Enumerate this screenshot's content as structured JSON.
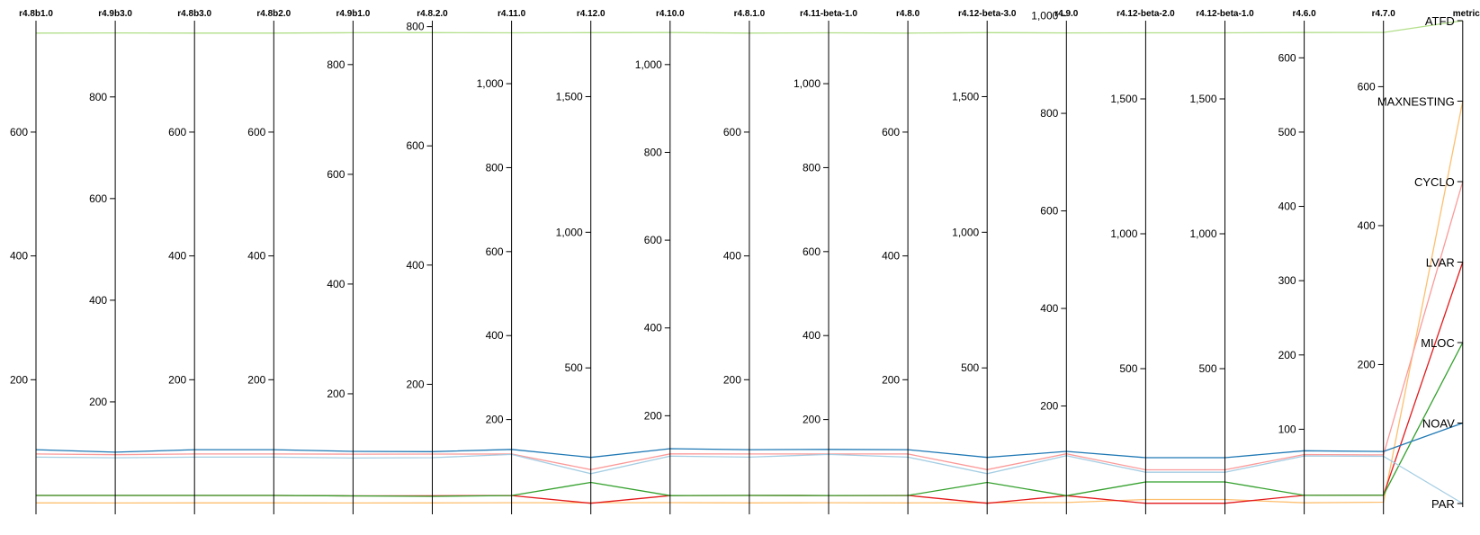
{
  "chart_data": {
    "type": "parallel-coordinates",
    "title": "",
    "category_axis": {
      "title": "metric",
      "categories": [
        "ATFD",
        "MAXNESTING",
        "CYCLO",
        "LVAR",
        "MLOC",
        "NOAV",
        "PAR"
      ]
    },
    "axes": [
      {
        "title": "r4.8b1.0",
        "domain": [
          0,
          780
        ],
        "ticks": [
          200,
          400,
          600
        ]
      },
      {
        "title": "r4.9b3.0",
        "domain": [
          0,
          950
        ],
        "ticks": [
          200,
          400,
          600,
          800
        ]
      },
      {
        "title": "r4.8b3.0",
        "domain": [
          0,
          780
        ],
        "ticks": [
          200,
          400,
          600
        ]
      },
      {
        "title": "r4.8b2.0",
        "domain": [
          0,
          780
        ],
        "ticks": [
          200,
          400,
          600
        ]
      },
      {
        "title": "r4.9b1.0",
        "domain": [
          0,
          880
        ],
        "ticks": [
          200,
          400,
          600,
          800
        ]
      },
      {
        "title": "r4.8.2.0",
        "domain": [
          0,
          810
        ],
        "ticks": [
          200,
          400,
          600,
          800
        ]
      },
      {
        "title": "r4.11.0",
        "domain": [
          0,
          1150
        ],
        "ticks": [
          200,
          400,
          600,
          800,
          1000
        ]
      },
      {
        "title": "r4.12.0",
        "domain": [
          0,
          1780
        ],
        "ticks": [
          500,
          1000,
          1500
        ]
      },
      {
        "title": "r4.10.0",
        "domain": [
          0,
          1100
        ],
        "ticks": [
          200,
          400,
          600,
          800,
          1000
        ]
      },
      {
        "title": "r4.8.1.0",
        "domain": [
          0,
          780
        ],
        "ticks": [
          200,
          400,
          600
        ]
      },
      {
        "title": "r4.11-beta-1.0",
        "domain": [
          0,
          1150
        ],
        "ticks": [
          200,
          400,
          600,
          800,
          1000
        ]
      },
      {
        "title": "r4.8.0",
        "domain": [
          0,
          780
        ],
        "ticks": [
          200,
          400,
          600
        ]
      },
      {
        "title": "r4.12-beta-3.0",
        "domain": [
          0,
          1780
        ],
        "ticks": [
          500,
          1000,
          1500
        ]
      },
      {
        "title": "r4.9.0",
        "domain": [
          0,
          990
        ],
        "ticks": [
          200,
          400,
          600,
          800,
          1000
        ]
      },
      {
        "title": "r4.12-beta-2.0",
        "domain": [
          0,
          1790
        ],
        "ticks": [
          500,
          1000,
          1500
        ]
      },
      {
        "title": "r4.12-beta-1.0",
        "domain": [
          0,
          1790
        ],
        "ticks": [
          500,
          1000,
          1500
        ]
      },
      {
        "title": "r4.6.0",
        "domain": [
          0,
          650
        ],
        "ticks": [
          100,
          200,
          300,
          400,
          500,
          600
        ]
      },
      {
        "title": "r4.7.0",
        "domain": [
          0,
          695
        ],
        "ticks": [
          200,
          400,
          600
        ]
      }
    ],
    "series": [
      {
        "category": "ATFD",
        "color": "#b2df8a",
        "values": [
          760,
          926,
          760,
          760,
          858,
          790,
          1121,
          1736,
          1073,
          760,
          1121,
          760,
          1736,
          965,
          1745,
          1745,
          634,
          678
        ]
      },
      {
        "category": "MAXNESTING",
        "color": "#fdbf6f",
        "values": [
          1,
          1,
          1,
          1,
          1,
          1,
          2,
          3,
          2,
          1,
          2,
          1,
          3,
          2,
          15,
          15,
          1,
          2
        ]
      },
      {
        "category": "CYCLO",
        "color": "#fb9a99",
        "values": [
          80,
          96,
          80,
          80,
          90,
          83,
          118,
          125,
          113,
          80,
          118,
          80,
          125,
          102,
          125,
          125,
          66,
          70
        ]
      },
      {
        "category": "LVAR",
        "color": "#e31a1c",
        "values": [
          13,
          16,
          13,
          13,
          14,
          13,
          19,
          1,
          18,
          13,
          19,
          13,
          1,
          16,
          1,
          1,
          11,
          12
        ]
      },
      {
        "category": "MLOC",
        "color": "#33a02c",
        "values": [
          13,
          16,
          13,
          13,
          14,
          12,
          19,
          78,
          18,
          13,
          19,
          13,
          78,
          16,
          80,
          80,
          11,
          12
        ]
      },
      {
        "category": "NOAV",
        "color": "#1f78b4",
        "values": [
          87,
          101,
          87,
          87,
          95,
          87,
          129,
          170,
          125,
          87,
          129,
          87,
          170,
          107,
          170,
          170,
          71,
          75
        ]
      },
      {
        "category": "PAR",
        "color": "#a6cee3",
        "values": [
          75,
          90,
          75,
          75,
          83,
          77,
          117,
          110,
          108,
          75,
          117,
          75,
          110,
          98,
          116,
          116,
          64,
          68
        ]
      }
    ]
  }
}
